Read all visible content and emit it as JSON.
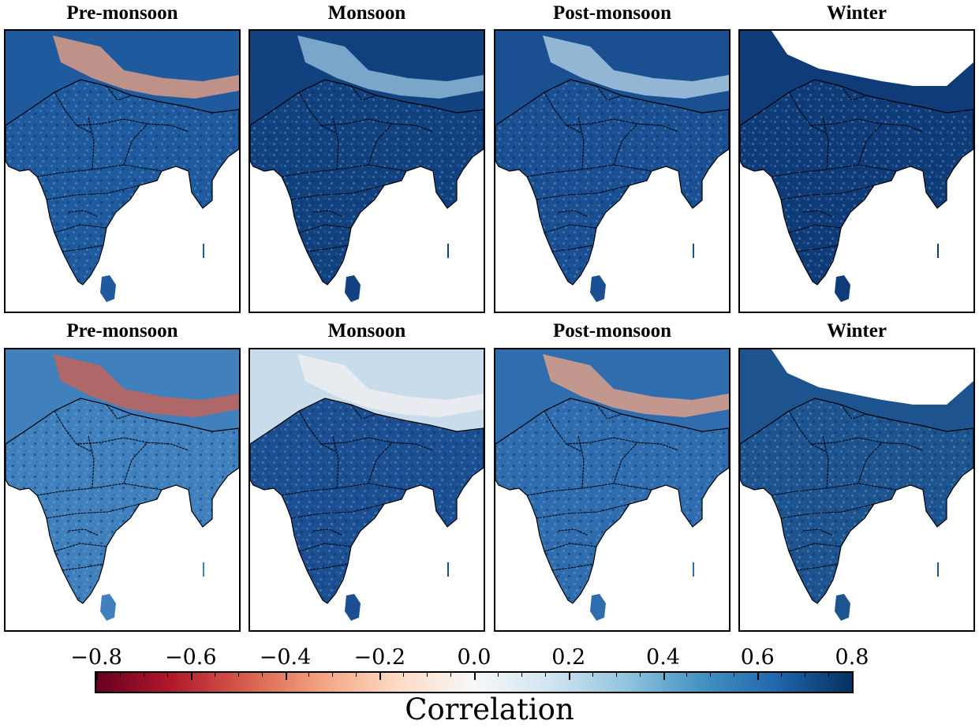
{
  "rows": [
    {
      "panels": [
        {
          "title": "Pre-monsoon",
          "tone": "#1f5a9e",
          "accent": "#f4a582"
        },
        {
          "title": "Monsoon",
          "tone": "#11417f",
          "accent": "#9ec8e2"
        },
        {
          "title": "Post-monsoon",
          "tone": "#1a4f92",
          "accent": "#bcd8ea"
        },
        {
          "title": "Winter",
          "tone": "#0f3c78",
          "accent": "#ffffff"
        }
      ]
    },
    {
      "panels": [
        {
          "title": "Pre-monsoon",
          "tone": "#3f80bd",
          "accent": "#d6604d"
        },
        {
          "title": "Monsoon",
          "tone": "#1c4f92",
          "accent": "#f2f2f2"
        },
        {
          "title": "Post-monsoon",
          "tone": "#2f6daf",
          "accent": "#f4a582"
        },
        {
          "title": "Winter",
          "tone": "#1d548f",
          "accent": "#ffffff"
        }
      ]
    }
  ],
  "colorbar": {
    "label": "Correlation",
    "ticks": [
      "−0.8",
      "−0.6",
      "−0.4",
      "−0.2",
      "0.0",
      "0.2",
      "0.4",
      "0.6",
      "0.8"
    ],
    "range": [
      -0.8,
      0.8
    ],
    "colormap": "RdBu"
  }
}
